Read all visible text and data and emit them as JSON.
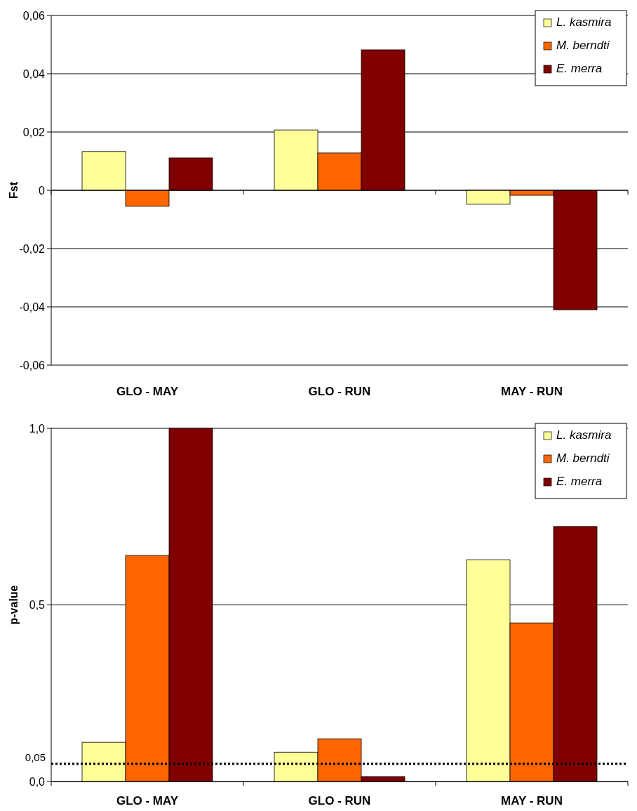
{
  "chart_data": [
    {
      "type": "bar",
      "ylabel": "Fst",
      "categories": [
        "GLO - MAY",
        "GLO - RUN",
        "MAY - RUN"
      ],
      "series": [
        {
          "name": "L. kasmira",
          "color": "#ffff99",
          "values": [
            0.0133,
            0.0207,
            -0.0048
          ]
        },
        {
          "name": "M. berndti",
          "color": "#ff6600",
          "values": [
            -0.0055,
            0.0128,
            -0.0017
          ]
        },
        {
          "name": "E. merra",
          "color": "#800000",
          "values": [
            0.0111,
            0.0482,
            -0.041
          ]
        }
      ],
      "ylim": [
        -0.06,
        0.06
      ],
      "yticks": [
        {
          "value": -0.06,
          "label": "-0,06"
        },
        {
          "value": -0.04,
          "label": "-0,04"
        },
        {
          "value": -0.02,
          "label": "-0,02"
        },
        0,
        {
          "value": 0.02,
          "label": "0,02"
        },
        {
          "value": 0.04,
          "label": "0,04"
        },
        {
          "value": 0.06,
          "label": "0,06"
        }
      ],
      "grid": "y",
      "legend": "top right"
    },
    {
      "type": "bar",
      "ylabel": "p-value",
      "categories": [
        "GLO - MAY",
        "GLO - RUN",
        "MAY - RUN"
      ],
      "series": [
        {
          "name": "L. kasmira",
          "color": "#ffff99",
          "values": [
            0.111,
            0.083,
            0.628
          ]
        },
        {
          "name": "M. berndti",
          "color": "#ff6600",
          "values": [
            0.64,
            0.121,
            0.449
          ]
        },
        {
          "name": "E. merra",
          "color": "#800000",
          "values": [
            1.0,
            0.014,
            0.722
          ]
        }
      ],
      "ylim": [
        0,
        1
      ],
      "yticks": [
        {
          "value": 0,
          "label": "0,0"
        },
        {
          "value": 0.5,
          "label": "0,5"
        },
        {
          "value": 1,
          "label": "1,0"
        }
      ],
      "ref_lines": [
        {
          "axis": "y",
          "value": 0.05,
          "label": "0,05",
          "color": "#000000",
          "line_style": "dotted"
        }
      ],
      "grid": "y",
      "legend": "top right"
    }
  ]
}
